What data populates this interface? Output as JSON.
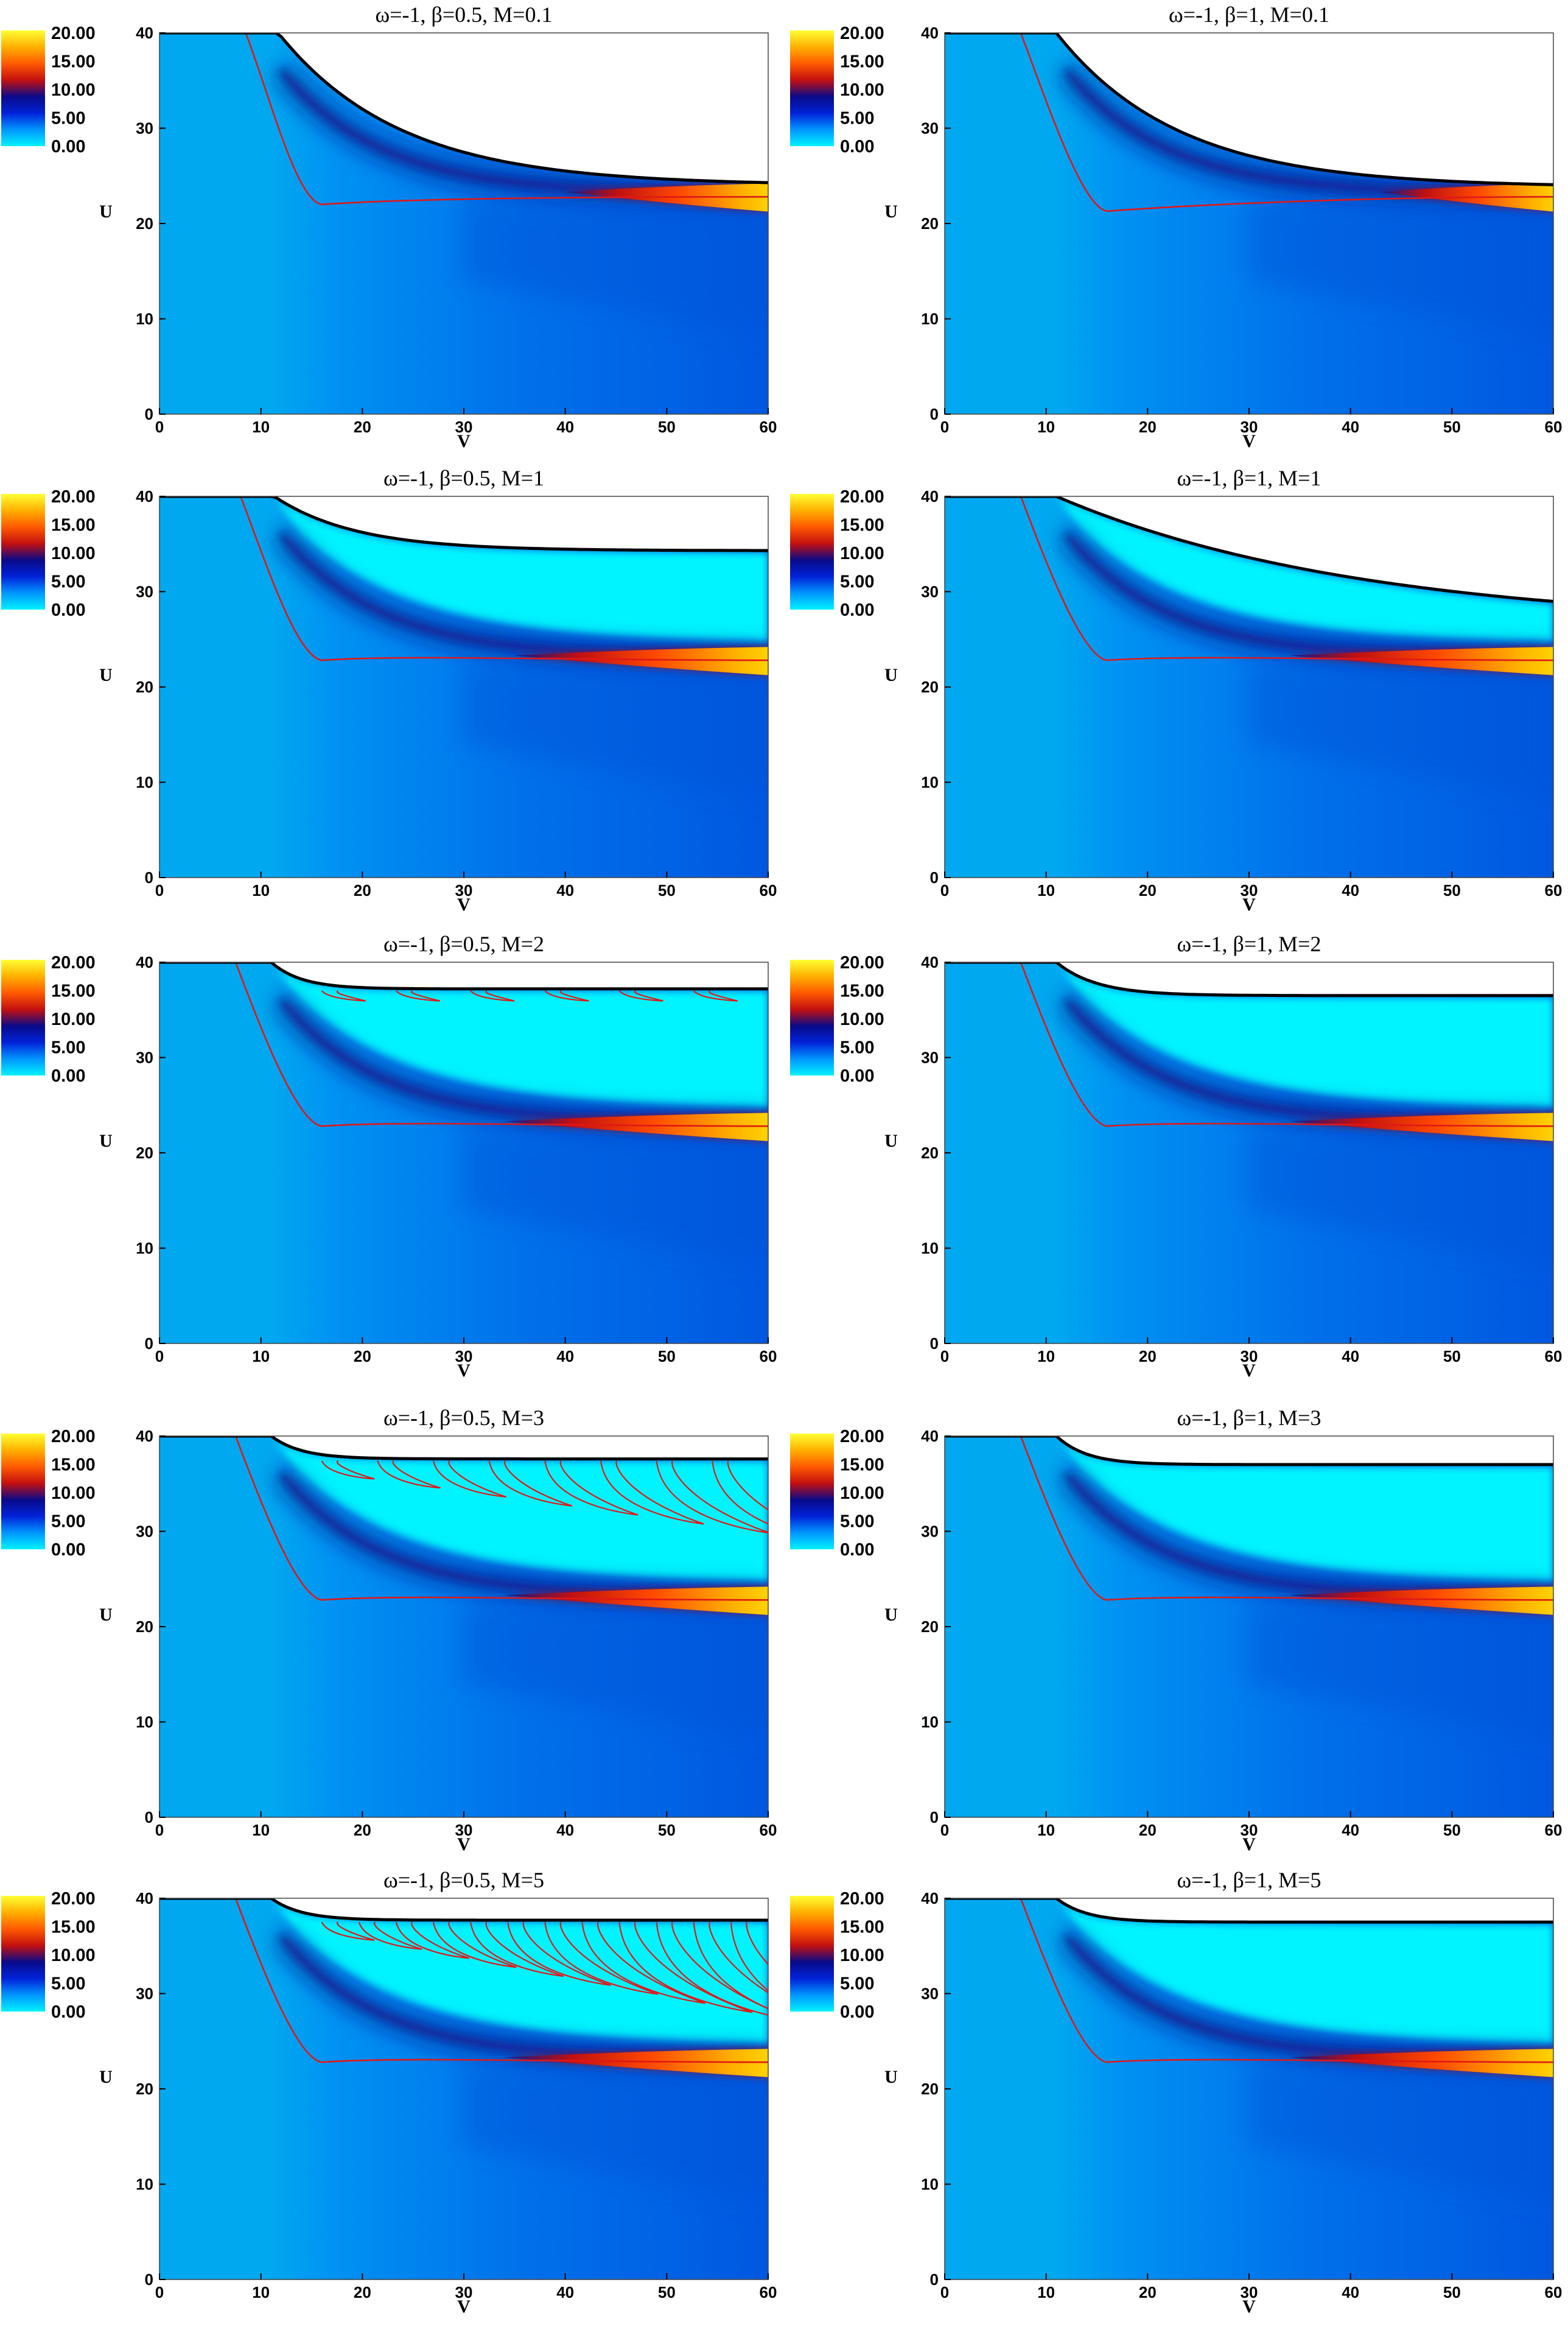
{
  "colorbar": {
    "labels": [
      "20.00",
      "15.00",
      "10.00",
      "5.00",
      "0.00"
    ],
    "range": [
      0,
      20
    ],
    "colors": [
      "#00f2ff",
      "#0096ff",
      "#0022d8",
      "#0a0a88",
      "#c41010",
      "#ff5a00",
      "#ffb000",
      "#ffff33"
    ]
  },
  "colors": {
    "field_low": "#00a8f0",
    "field_mid": "#0058e0",
    "field_deep": "#0a1a8c",
    "bright_region": "#00f4ff",
    "hot_core": "#ff4a00",
    "hot_edge": "#c01010",
    "hot_tip": "#ffd800",
    "red_contour": "#e01818",
    "horizon_line": "#000000"
  },
  "chart_data": [
    {
      "type": "heatmap",
      "title": "ω=-1, β=0.5, M=0.1",
      "xlabel": "V",
      "ylabel": "U",
      "xlim": [
        0,
        60
      ],
      "ylim": [
        0,
        40
      ],
      "xticks": [
        "0",
        "10",
        "20",
        "30",
        "40",
        "50",
        "60"
      ],
      "yticks": [
        "0",
        "10",
        "20",
        "30",
        "40"
      ],
      "boundary": {
        "kink_v": 11.7,
        "end_u": 24.0,
        "decay": 12
      },
      "contour": {
        "start_v": 8.5,
        "bottom_v": 16,
        "level_u": 22.0,
        "end_u": 22.8
      },
      "hot_band": {
        "start_v": 40,
        "u": 23.0
      },
      "bright_region": false,
      "oscillation_lobes": 0
    },
    {
      "type": "heatmap",
      "title": "ω=-1, β=1, M=0.1",
      "xlabel": "V",
      "ylabel": "U",
      "xlim": [
        0,
        60
      ],
      "ylim": [
        0,
        40
      ],
      "xticks": [
        "0",
        "10",
        "20",
        "30",
        "40",
        "50",
        "60"
      ],
      "yticks": [
        "0",
        "10",
        "20",
        "30",
        "40"
      ],
      "boundary": {
        "kink_v": 11.0,
        "end_u": 23.8,
        "decay": 12
      },
      "contour": {
        "start_v": 7.5,
        "bottom_v": 16,
        "level_u": 21.3,
        "end_u": 22.8
      },
      "hot_band": {
        "start_v": 43,
        "u": 23.0
      },
      "bright_region": false,
      "oscillation_lobes": 0
    },
    {
      "type": "heatmap",
      "title": "ω=-1, β=0.5, M=1",
      "xlabel": "V",
      "ylabel": "U",
      "xlim": [
        0,
        60
      ],
      "ylim": [
        0,
        40
      ],
      "xticks": [
        "0",
        "10",
        "20",
        "30",
        "40",
        "50",
        "60"
      ],
      "yticks": [
        "0",
        "10",
        "20",
        "30",
        "40"
      ],
      "boundary": {
        "kink_v": 11.3,
        "end_u": 34.3,
        "decay": 8
      },
      "contour": {
        "start_v": 8.0,
        "bottom_v": 16,
        "level_u": 22.8,
        "end_u": 22.8
      },
      "hot_band": {
        "start_v": 35,
        "u": 23.0
      },
      "bright_region": true,
      "oscillation_lobes": 0
    },
    {
      "type": "heatmap",
      "title": "ω=-1, β=1, M=1",
      "xlabel": "V",
      "ylabel": "U",
      "xlim": [
        0,
        60
      ],
      "ylim": [
        0,
        40
      ],
      "xticks": [
        "0",
        "10",
        "20",
        "30",
        "40",
        "50",
        "60"
      ],
      "yticks": [
        "0",
        "10",
        "20",
        "30",
        "40"
      ],
      "boundary": {
        "kink_v": 11.0,
        "end_u": 26.3,
        "decay": 30
      },
      "contour": {
        "start_v": 7.5,
        "bottom_v": 16,
        "level_u": 22.8,
        "end_u": 22.8
      },
      "hot_band": {
        "start_v": 34,
        "u": 23.0
      },
      "bright_region": true,
      "oscillation_lobes": 0
    },
    {
      "type": "heatmap",
      "title": "ω=-1, β=0.5, M=2",
      "xlabel": "V",
      "ylabel": "U",
      "xlim": [
        0,
        60
      ],
      "ylim": [
        0,
        40
      ],
      "xticks": [
        "0",
        "10",
        "20",
        "30",
        "40",
        "50",
        "60"
      ],
      "yticks": [
        "0",
        "10",
        "20",
        "30",
        "40"
      ],
      "boundary": {
        "kink_v": 11.0,
        "end_u": 37.2,
        "decay": 3
      },
      "contour": {
        "start_v": 7.5,
        "bottom_v": 16,
        "level_u": 22.8,
        "end_u": 22.8
      },
      "hot_band": {
        "start_v": 34,
        "u": 23.0
      },
      "bright_region": true,
      "oscillation_lobes": 6
    },
    {
      "type": "heatmap",
      "title": "ω=-1, β=1, M=2",
      "xlabel": "V",
      "ylabel": "U",
      "xlim": [
        0,
        60
      ],
      "ylim": [
        0,
        40
      ],
      "xticks": [
        "0",
        "10",
        "20",
        "30",
        "40",
        "50",
        "60"
      ],
      "yticks": [
        "0",
        "10",
        "20",
        "30",
        "40"
      ],
      "boundary": {
        "kink_v": 11.0,
        "end_u": 36.5,
        "decay": 4
      },
      "contour": {
        "start_v": 7.5,
        "bottom_v": 16,
        "level_u": 22.8,
        "end_u": 22.8
      },
      "hot_band": {
        "start_v": 34,
        "u": 23.0
      },
      "bright_region": true,
      "oscillation_lobes": 0
    },
    {
      "type": "heatmap",
      "title": "ω=-1, β=0.5, M=3",
      "xlabel": "V",
      "ylabel": "U",
      "xlim": [
        0,
        60
      ],
      "ylim": [
        0,
        40
      ],
      "xticks": [
        "0",
        "10",
        "20",
        "30",
        "40",
        "50",
        "60"
      ],
      "yticks": [
        "0",
        "10",
        "20",
        "30",
        "40"
      ],
      "boundary": {
        "kink_v": 11.0,
        "end_u": 37.6,
        "decay": 3
      },
      "contour": {
        "start_v": 7.5,
        "bottom_v": 16,
        "level_u": 22.8,
        "end_u": 22.8
      },
      "hot_band": {
        "start_v": 34,
        "u": 23.0
      },
      "bright_region": true,
      "oscillation_lobes": 8
    },
    {
      "type": "heatmap",
      "title": "ω=-1, β=1, M=3",
      "xlabel": "V",
      "ylabel": "U",
      "xlim": [
        0,
        60
      ],
      "ylim": [
        0,
        40
      ],
      "xticks": [
        "0",
        "10",
        "20",
        "30",
        "40",
        "50",
        "60"
      ],
      "yticks": [
        "0",
        "10",
        "20",
        "30",
        "40"
      ],
      "boundary": {
        "kink_v": 11.0,
        "end_u": 37.0,
        "decay": 3
      },
      "contour": {
        "start_v": 7.5,
        "bottom_v": 16,
        "level_u": 22.8,
        "end_u": 22.8
      },
      "hot_band": {
        "start_v": 34,
        "u": 23.0
      },
      "bright_region": true,
      "oscillation_lobes": 0
    },
    {
      "type": "heatmap",
      "title": "ω=-1, β=0.5, M=5",
      "xlabel": "V",
      "ylabel": "U",
      "xlim": [
        0,
        60
      ],
      "ylim": [
        0,
        40
      ],
      "xticks": [
        "0",
        "10",
        "20",
        "30",
        "40",
        "50",
        "60"
      ],
      "yticks": [
        "0",
        "10",
        "20",
        "30",
        "40"
      ],
      "boundary": {
        "kink_v": 11.0,
        "end_u": 37.7,
        "decay": 3
      },
      "contour": {
        "start_v": 7.5,
        "bottom_v": 16,
        "level_u": 22.8,
        "end_u": 22.8
      },
      "hot_band": {
        "start_v": 34,
        "u": 23.0
      },
      "bright_region": true,
      "oscillation_lobes": 12
    },
    {
      "type": "heatmap",
      "title": "ω=-1, β=1, M=5",
      "xlabel": "V",
      "ylabel": "U",
      "xlim": [
        0,
        60
      ],
      "ylim": [
        0,
        40
      ],
      "xticks": [
        "0",
        "10",
        "20",
        "30",
        "40",
        "50",
        "60"
      ],
      "yticks": [
        "0",
        "10",
        "20",
        "30",
        "40"
      ],
      "boundary": {
        "kink_v": 11.0,
        "end_u": 37.5,
        "decay": 3
      },
      "contour": {
        "start_v": 7.5,
        "bottom_v": 16,
        "level_u": 22.8,
        "end_u": 22.8
      },
      "hot_band": {
        "start_v": 34,
        "u": 23.0
      },
      "bright_region": true,
      "oscillation_lobes": 0
    }
  ]
}
